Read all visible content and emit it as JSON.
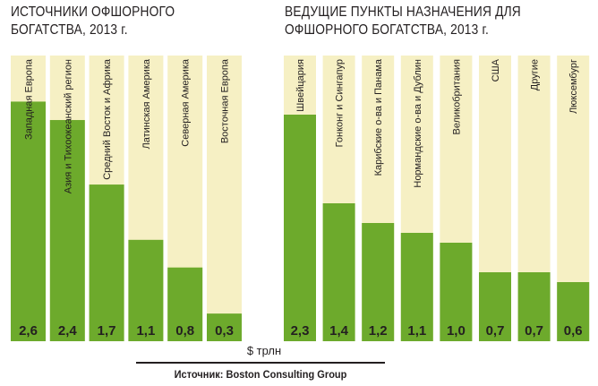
{
  "unit_label": "$ трлн",
  "source": "Источник: Boston Consulting Group",
  "colors": {
    "bar": "#6daa2c",
    "track": "#f6f0c4",
    "value_text": "#231f20",
    "label_text": "#231f20"
  },
  "chart_data": [
    {
      "type": "bar",
      "title": "ИСТОЧНИКИ ОФШОРНОГО БОГАТСТВА, 2013 г.",
      "categories": [
        "Западная Европа",
        "Азия и Тихоокеанский регион",
        "Средний Восток и Африка",
        "Латинская Америка",
        "Северная Америка",
        "Восточная Европа"
      ],
      "values": [
        2.6,
        2.4,
        1.7,
        1.1,
        0.8,
        0.3
      ],
      "value_labels": [
        "2,6",
        "2,4",
        "1,7",
        "1,1",
        "0,8",
        "0,3"
      ],
      "unit": "$ трлн",
      "ylim": [
        0,
        3.1
      ]
    },
    {
      "type": "bar",
      "title": "ВЕДУЩИЕ ПУНКТЫ НАЗНАЧЕНИЯ ДЛЯ ОФШОРНОГО БОГАТСТВА, 2013 г.",
      "categories": [
        "Швейцария",
        "Гонконг и Сингапур",
        "Карибские о-ва и Панама",
        "Нормандские о-ва и Дублин",
        "Великобритания",
        "США",
        "Другие",
        "Люксембург"
      ],
      "values": [
        2.3,
        1.4,
        1.2,
        1.1,
        1.0,
        0.7,
        0.7,
        0.6
      ],
      "value_labels": [
        "2,3",
        "1,4",
        "1,2",
        "1,1",
        "1,0",
        "0,7",
        "0,7",
        "0,6"
      ],
      "unit": "$ трлн",
      "ylim": [
        0,
        2.9
      ]
    }
  ]
}
